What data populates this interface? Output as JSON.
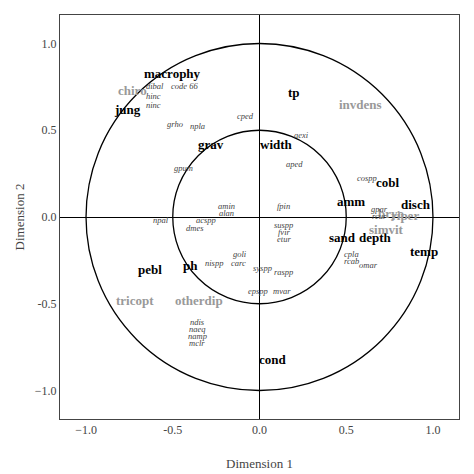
{
  "chart_data": {
    "type": "scatter",
    "xlabel": "Dimension 1",
    "ylabel": "Dimension 2",
    "xlim": [
      -1.15,
      1.15
    ],
    "ylim": [
      -1.15,
      1.15
    ],
    "xticks": [
      {
        "value": -1.0,
        "label": "−1.0"
      },
      -0.5,
      {
        "value": 0.0,
        "label": "0.0"
      },
      0.5,
      {
        "value": 1.0,
        "label": "1.0"
      }
    ],
    "yticks": [
      {
        "value": -1.0,
        "label": "−1.0"
      },
      -0.5,
      {
        "value": 0.0,
        "label": "0.0"
      },
      0.5,
      {
        "value": 1.0,
        "label": "1.0"
      }
    ],
    "grid": false,
    "circles": {
      "radii": [
        0.5,
        1.0
      ],
      "color": "#000000"
    },
    "bold_labels": {
      "color": "#000000",
      "labels": [
        {
          "text": "macrophy",
          "x": -0.5,
          "y": 0.83
        },
        {
          "text": "jung",
          "x": -0.76,
          "y": 0.62
        },
        {
          "text": "grav",
          "x": -0.28,
          "y": 0.42
        },
        {
          "text": "width",
          "x": 0.1,
          "y": 0.42
        },
        {
          "text": "tp",
          "x": 0.2,
          "y": 0.72
        },
        {
          "text": "cobl",
          "x": 0.74,
          "y": 0.2
        },
        {
          "text": "amm",
          "x": 0.53,
          "y": 0.09
        },
        {
          "text": "disch",
          "x": 0.9,
          "y": 0.07
        },
        {
          "text": "depth",
          "x": 0.67,
          "y": -0.12
        },
        {
          "text": "sand",
          "x": 0.48,
          "y": -0.12
        },
        {
          "text": "temp",
          "x": 0.95,
          "y": -0.2
        },
        {
          "text": "ph",
          "x": -0.4,
          "y": -0.28
        },
        {
          "text": "pebl",
          "x": -0.63,
          "y": -0.3
        },
        {
          "text": "cond",
          "x": 0.08,
          "y": -0.82
        }
      ]
    },
    "gray_labels": {
      "color": "#999999",
      "labels": [
        {
          "text": "chiro",
          "x": -0.73,
          "y": 0.73
        },
        {
          "text": "invdens",
          "x": 0.58,
          "y": 0.65
        },
        {
          "text": "tricopt",
          "x": -0.72,
          "y": -0.48
        },
        {
          "text": "otherdip",
          "x": -0.35,
          "y": -0.48
        },
        {
          "text": "bryo",
          "x": 0.76,
          "y": 0.02
        },
        {
          "text": "simvit",
          "x": 0.73,
          "y": -0.07
        },
        {
          "text": "riper",
          "x": 0.84,
          "y": 0.01
        }
      ]
    },
    "italic_labels": {
      "color": "#444444",
      "labels": [
        {
          "text": "dibal",
          "x": -0.6,
          "y": 0.755
        },
        {
          "text": "code 66",
          "x": -0.43,
          "y": 0.755
        },
        {
          "text": "hinc",
          "x": -0.61,
          "y": 0.695
        },
        {
          "text": "ninc",
          "x": -0.61,
          "y": 0.645
        },
        {
          "text": "grho",
          "x": -0.49,
          "y": 0.535
        },
        {
          "text": "npla",
          "x": -0.36,
          "y": 0.525
        },
        {
          "text": "cped",
          "x": -0.08,
          "y": 0.585
        },
        {
          "text": "gpum",
          "x": -0.44,
          "y": 0.285
        },
        {
          "text": "aexi",
          "x": 0.24,
          "y": 0.47
        },
        {
          "text": "aped",
          "x": 0.2,
          "y": 0.305
        },
        {
          "text": "cospp",
          "x": 0.62,
          "y": 0.225
        },
        {
          "text": "fpin",
          "x": 0.14,
          "y": 0.065
        },
        {
          "text": "gpar",
          "x": 0.69,
          "y": 0.045
        },
        {
          "text": "rcur",
          "x": 0.69,
          "y": 0.005
        },
        {
          "text": "amin",
          "x": -0.19,
          "y": 0.065
        },
        {
          "text": "alan",
          "x": -0.19,
          "y": 0.025
        },
        {
          "text": "acspp",
          "x": -0.31,
          "y": -0.015
        },
        {
          "text": "npal",
          "x": -0.57,
          "y": -0.015
        },
        {
          "text": "dmes",
          "x": -0.37,
          "y": -0.065
        },
        {
          "text": "suspp",
          "x": 0.14,
          "y": -0.045
        },
        {
          "text": "fvir",
          "x": 0.14,
          "y": -0.085
        },
        {
          "text": "etur",
          "x": 0.14,
          "y": -0.125
        },
        {
          "text": "goli",
          "x": -0.11,
          "y": -0.215
        },
        {
          "text": "nispp",
          "x": -0.26,
          "y": -0.265
        },
        {
          "text": "carc",
          "x": -0.12,
          "y": -0.265
        },
        {
          "text": "syspp",
          "x": 0.02,
          "y": -0.295
        },
        {
          "text": "raspp",
          "x": 0.14,
          "y": -0.315
        },
        {
          "text": "cpla",
          "x": 0.53,
          "y": -0.215
        },
        {
          "text": "rcab",
          "x": 0.53,
          "y": -0.255
        },
        {
          "text": "omar",
          "x": 0.63,
          "y": -0.275
        },
        {
          "text": "epspp",
          "x": -0.01,
          "y": -0.425
        },
        {
          "text": "mvar",
          "x": 0.13,
          "y": -0.425
        },
        {
          "text": "ndis",
          "x": -0.36,
          "y": -0.605
        },
        {
          "text": "naeq",
          "x": -0.36,
          "y": -0.645
        },
        {
          "text": "namp",
          "x": -0.36,
          "y": -0.685
        },
        {
          "text": "mclr",
          "x": -0.36,
          "y": -0.725
        }
      ]
    }
  }
}
